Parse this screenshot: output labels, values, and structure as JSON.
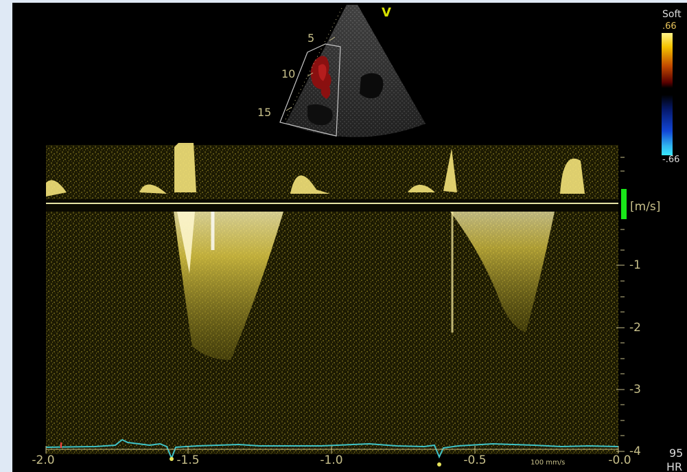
{
  "scale": {
    "label": "Soft",
    "max": ".66",
    "min": "-.66"
  },
  "sector": {
    "marker": "V",
    "depth_labels": [
      "5",
      "10",
      "15"
    ]
  },
  "spectrum": {
    "unit": "[m/s]",
    "velocity_ticks": [
      "-1",
      "-2",
      "-3",
      "-4"
    ]
  },
  "time_axis": {
    "ticks": [
      "-2.0",
      "-1.5",
      "-1.0",
      "-0.5",
      "-0.0"
    ],
    "sweep_speed": "100 mm/s"
  },
  "hr": {
    "value": "95",
    "label": "HR"
  },
  "colors": {
    "doppler": "#e8d24a",
    "baseline": "#e6e3a6",
    "ecg": "#3fc3c8",
    "scale_bar_marker": "#19e619"
  }
}
